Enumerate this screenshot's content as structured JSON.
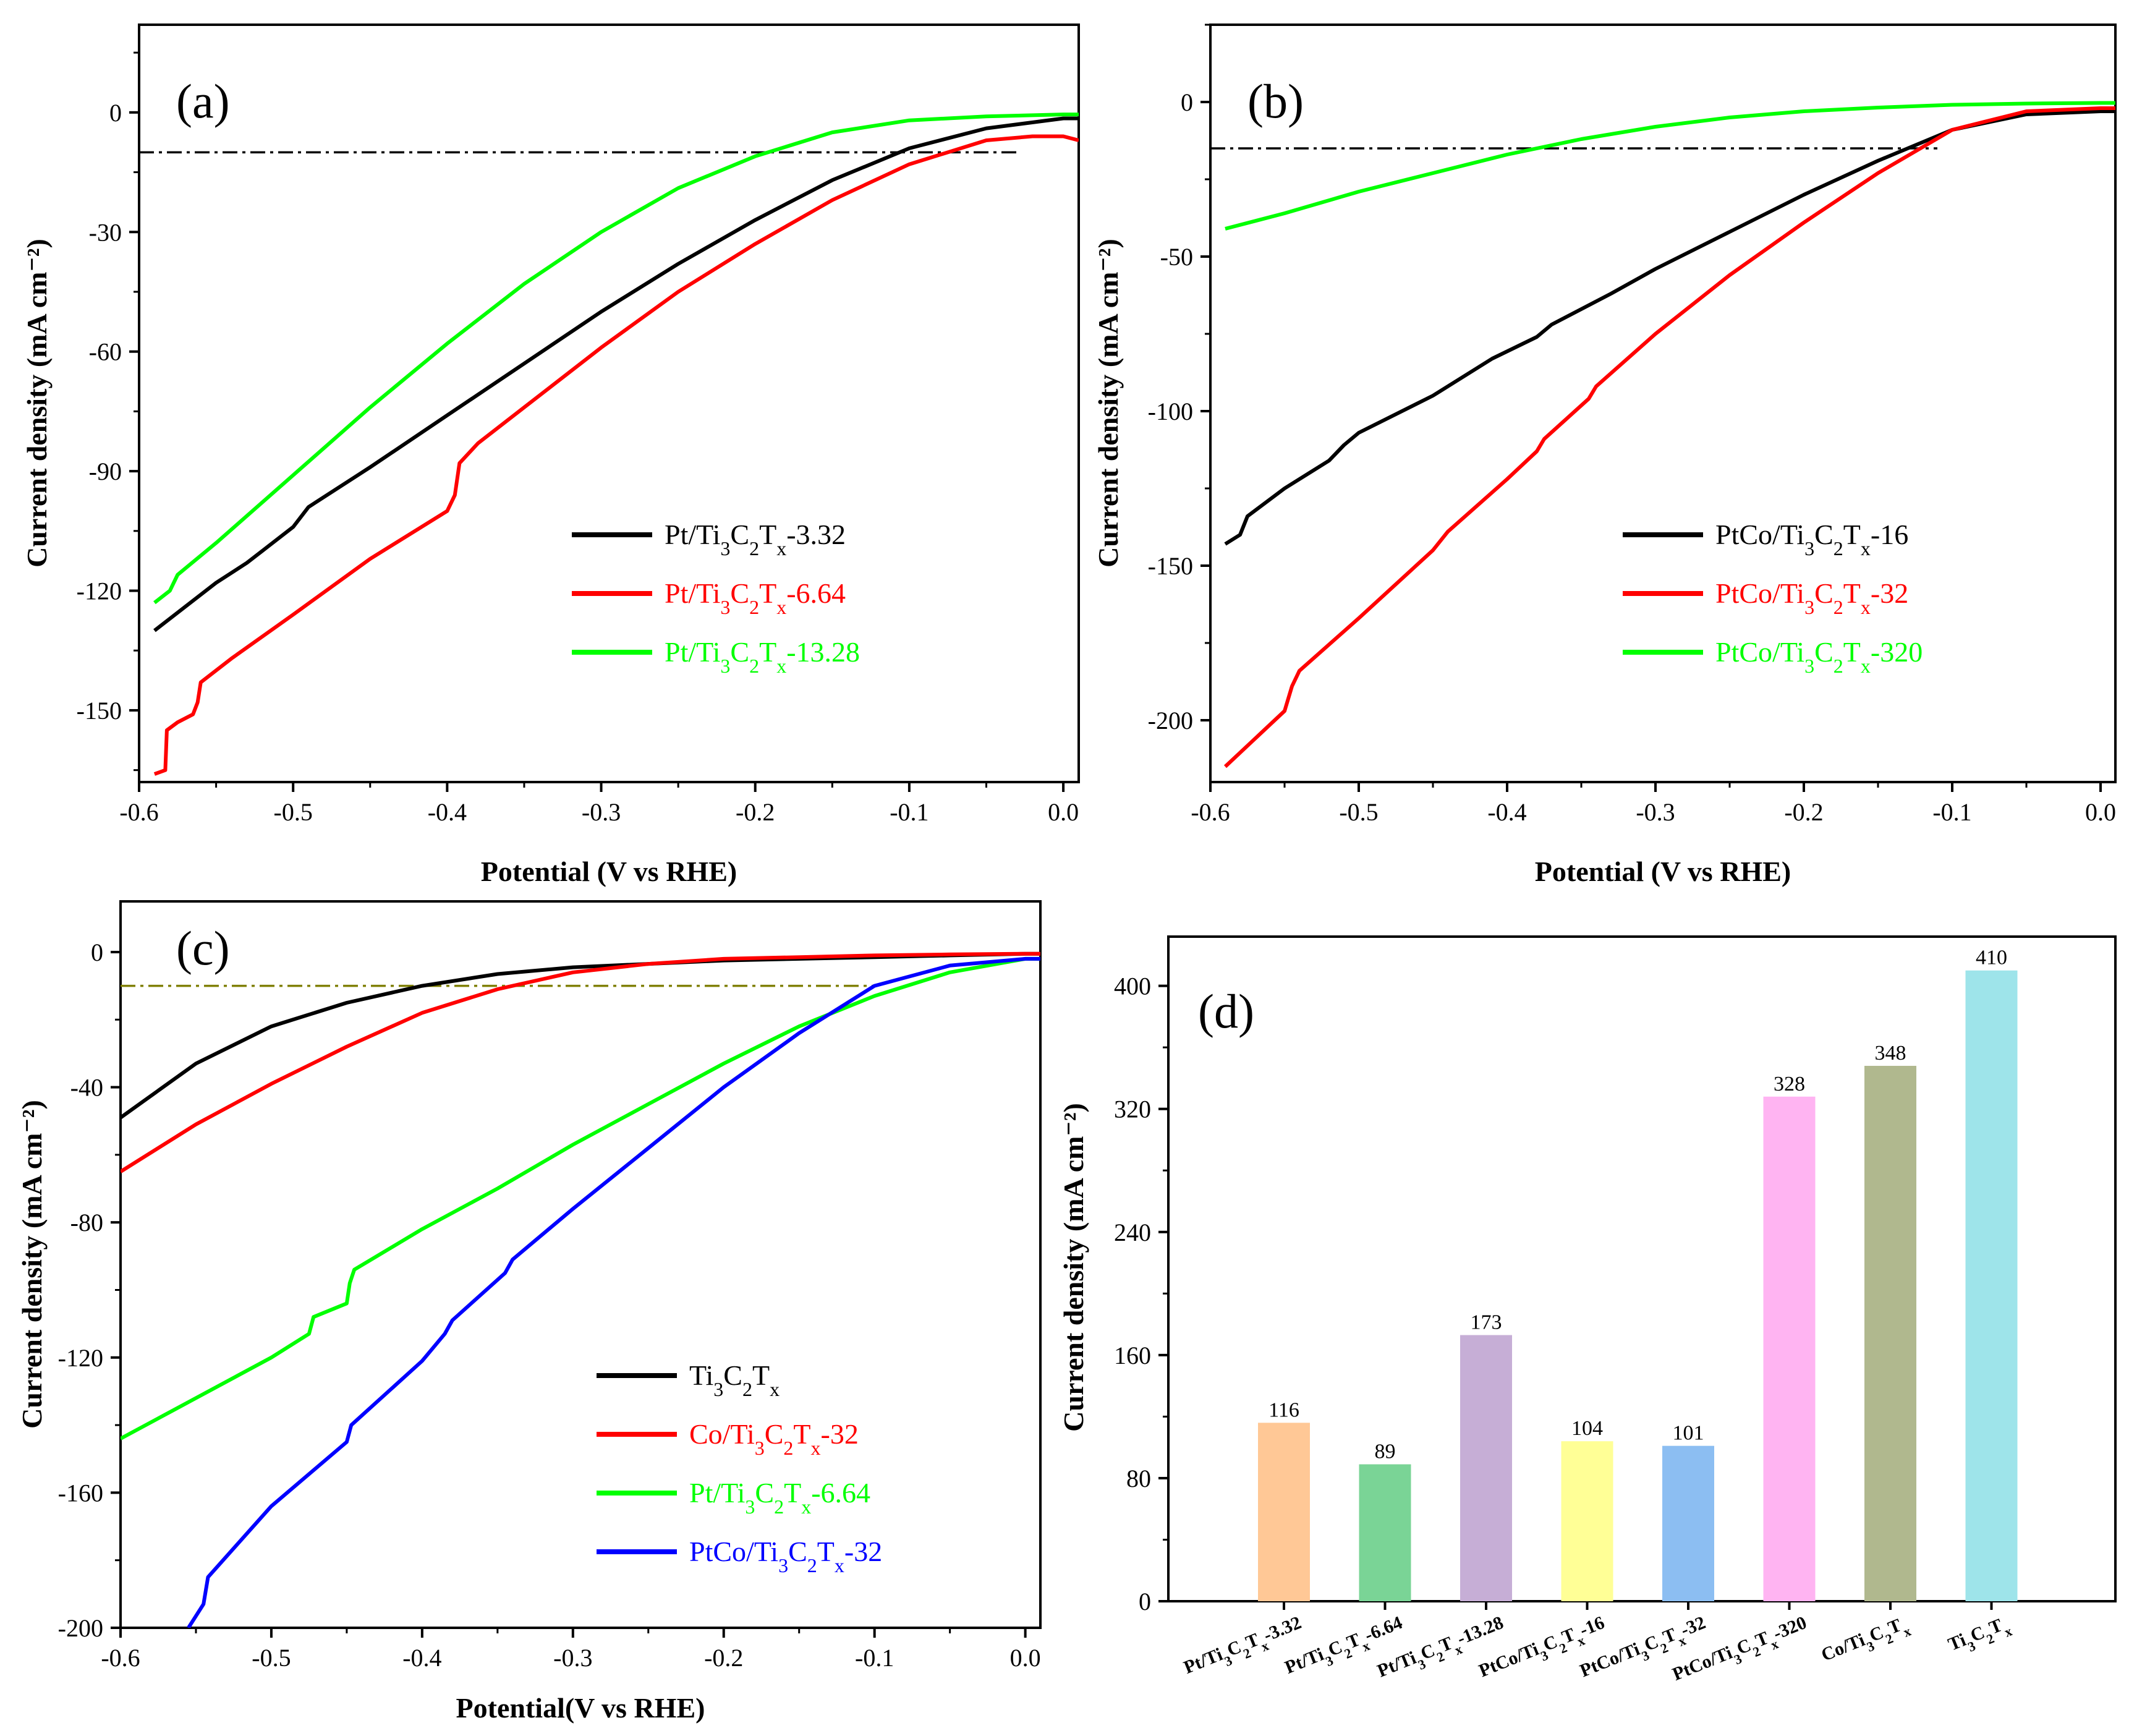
{
  "chart_data": [
    {
      "id": "a",
      "type": "line",
      "panel_label": "(a)",
      "xlabel": "Potential (V vs RHE)",
      "ylabel": "Current density (mA cm⁻²)",
      "xlim": [
        -0.6,
        0.01
      ],
      "ylim": [
        -168,
        22
      ],
      "xticks": [
        -0.6,
        -0.5,
        -0.4,
        -0.3,
        -0.2,
        -0.1,
        0.0
      ],
      "xtick_labels": [
        "-0.6",
        "-0.5",
        "-0.4",
        "-0.3",
        "-0.2",
        "-0.1",
        "0.0"
      ],
      "yticks": [
        0,
        -30,
        -60,
        -90,
        -120,
        -150
      ],
      "ytick_labels": [
        "0",
        "-30",
        "-60",
        "-90",
        "-120",
        "-150"
      ],
      "reference_line": {
        "y": -10,
        "x_from": -0.6,
        "x_to": -0.03,
        "color": "#000000"
      },
      "legend_position": "lower-right",
      "series": [
        {
          "name": "Pt/Ti3C2Tx-3.32",
          "label_main": "Pt/Ti",
          "label_parts": [
            [
              "3",
              "C"
            ],
            [
              "2",
              "T"
            ],
            [
              "x",
              "-3.32"
            ]
          ],
          "color": "#000000",
          "x": [
            -0.59,
            -0.57,
            -0.55,
            -0.53,
            -0.52,
            -0.5,
            -0.49,
            -0.45,
            -0.4,
            -0.35,
            -0.3,
            -0.25,
            -0.2,
            -0.15,
            -0.1,
            -0.05,
            0.0,
            0.01
          ],
          "y": [
            -130,
            -124,
            -118,
            -113,
            -110,
            -104,
            -99,
            -89,
            -76,
            -63,
            -50,
            -38,
            -27,
            -17,
            -9,
            -4,
            -1.5,
            -1.5
          ]
        },
        {
          "name": "Pt/Ti3C2Tx-6.64",
          "label_main": "Pt/Ti",
          "label_parts": [
            [
              "3",
              "C"
            ],
            [
              "2",
              "T"
            ],
            [
              "x",
              "-6.64"
            ]
          ],
          "color": "#ff0000",
          "x": [
            -0.59,
            -0.583,
            -0.582,
            -0.575,
            -0.565,
            -0.562,
            -0.56,
            -0.54,
            -0.5,
            -0.45,
            -0.4,
            -0.395,
            -0.392,
            -0.38,
            -0.35,
            -0.3,
            -0.25,
            -0.2,
            -0.15,
            -0.1,
            -0.05,
            -0.02,
            0.0,
            0.01
          ],
          "y": [
            -166,
            -165,
            -155,
            -153,
            -151,
            -148,
            -143,
            -137,
            -126,
            -112,
            -100,
            -96,
            -88,
            -83,
            -74,
            -59,
            -45,
            -33,
            -22,
            -13,
            -7,
            -6,
            -6,
            -7
          ]
        },
        {
          "name": "Pt/Ti3C2Tx-13.28",
          "label_main": "Pt/Ti",
          "label_parts": [
            [
              "3",
              "C"
            ],
            [
              "2",
              "T"
            ],
            [
              "x",
              "-13.28"
            ]
          ],
          "color": "#00ff00",
          "x": [
            -0.59,
            -0.58,
            -0.575,
            -0.55,
            -0.5,
            -0.45,
            -0.4,
            -0.35,
            -0.3,
            -0.25,
            -0.2,
            -0.15,
            -0.1,
            -0.05,
            0.0,
            0.01
          ],
          "y": [
            -123,
            -120,
            -116,
            -108,
            -91,
            -74,
            -58,
            -43,
            -30,
            -19,
            -11,
            -5,
            -2,
            -1,
            -0.5,
            -0.5
          ]
        }
      ]
    },
    {
      "id": "b",
      "type": "line",
      "panel_label": "(b)",
      "xlabel": "Potential (V vs RHE)",
      "ylabel": "Current density (mA cm⁻²)",
      "xlim": [
        -0.6,
        0.01
      ],
      "ylim": [
        -220,
        25
      ],
      "xticks": [
        -0.6,
        -0.5,
        -0.4,
        -0.3,
        -0.2,
        -0.1,
        0.0
      ],
      "xtick_labels": [
        "-0.6",
        "-0.5",
        "-0.4",
        "-0.3",
        "-0.2",
        "-0.1",
        "0.0"
      ],
      "yticks": [
        0,
        -50,
        -100,
        -150,
        -200
      ],
      "ytick_labels": [
        "0",
        "-50",
        "-100",
        "-150",
        "-200"
      ],
      "reference_line": {
        "y": -15,
        "x_from": -0.6,
        "x_to": -0.11,
        "color": "#000000"
      },
      "legend_position": "lower-right",
      "series": [
        {
          "name": "PtCo/Ti3C2Tx-16",
          "label_main": "PtCo/Ti",
          "label_parts": [
            [
              "3",
              "C"
            ],
            [
              "2",
              "T"
            ],
            [
              "x",
              "-16"
            ]
          ],
          "color": "#000000",
          "x": [
            -0.59,
            -0.58,
            -0.575,
            -0.55,
            -0.52,
            -0.51,
            -0.5,
            -0.45,
            -0.42,
            -0.41,
            -0.38,
            -0.37,
            -0.33,
            -0.3,
            -0.25,
            -0.2,
            -0.15,
            -0.1,
            -0.05,
            0.0,
            0.01
          ],
          "y": [
            -143,
            -140,
            -134,
            -125,
            -116,
            -111,
            -107,
            -95,
            -86,
            -83,
            -76,
            -72,
            -62,
            -54,
            -42,
            -30,
            -19,
            -9,
            -4,
            -3,
            -3
          ]
        },
        {
          "name": "PtCo/Ti3C2Tx-32",
          "label_main": "PtCo/Ti",
          "label_parts": [
            [
              "3",
              "C"
            ],
            [
              "2",
              "T"
            ],
            [
              "x",
              "-32"
            ]
          ],
          "color": "#ff0000",
          "x": [
            -0.59,
            -0.55,
            -0.545,
            -0.54,
            -0.5,
            -0.45,
            -0.44,
            -0.4,
            -0.38,
            -0.375,
            -0.345,
            -0.34,
            -0.3,
            -0.25,
            -0.2,
            -0.15,
            -0.1,
            -0.05,
            0.0,
            0.01
          ],
          "y": [
            -215,
            -197,
            -189,
            -184,
            -167,
            -145,
            -139,
            -122,
            -113,
            -109,
            -96,
            -92,
            -75,
            -56,
            -39,
            -23,
            -9,
            -3,
            -2,
            -2
          ]
        },
        {
          "name": "PtCo/Ti3C2Tx-320",
          "label_main": "PtCo/Ti",
          "label_parts": [
            [
              "3",
              "C"
            ],
            [
              "2",
              "T"
            ],
            [
              "x",
              "-320"
            ]
          ],
          "color": "#00ff00",
          "x": [
            -0.59,
            -0.55,
            -0.5,
            -0.45,
            -0.4,
            -0.35,
            -0.3,
            -0.25,
            -0.2,
            -0.15,
            -0.1,
            -0.05,
            0.0,
            0.01
          ],
          "y": [
            -41,
            -36,
            -29,
            -23,
            -17,
            -12,
            -8,
            -5,
            -3,
            -1.8,
            -0.9,
            -0.5,
            -0.3,
            -0.3
          ]
        }
      ]
    },
    {
      "id": "c",
      "type": "line",
      "panel_label": "(c)",
      "xlabel": "Potential(V vs RHE)",
      "ylabel": "Current density (mA cm⁻²)",
      "xlim": [
        -0.6,
        0.01
      ],
      "ylim": [
        -200,
        15
      ],
      "xticks": [
        -0.6,
        -0.5,
        -0.4,
        -0.3,
        -0.2,
        -0.1,
        0.0
      ],
      "xtick_labels": [
        "-0.6",
        "-0.5",
        "-0.4",
        "-0.3",
        "-0.2",
        "-0.1",
        "0.0"
      ],
      "yticks": [
        0,
        -40,
        -80,
        -120,
        -160,
        -200
      ],
      "ytick_labels": [
        "0",
        "-40",
        "-80",
        "-120",
        "-160",
        "-200"
      ],
      "reference_line": {
        "y": -10,
        "x_from": -0.6,
        "x_to": -0.1,
        "color": "#808000"
      },
      "legend_position": "lower-right",
      "series": [
        {
          "name": "Ti3C2Tx",
          "label_main": "Ti",
          "label_parts": [
            [
              "3",
              "C"
            ],
            [
              "2",
              "T"
            ],
            [
              "x",
              ""
            ]
          ],
          "color": "#000000",
          "x": [
            -0.6,
            -0.55,
            -0.5,
            -0.45,
            -0.4,
            -0.35,
            -0.3,
            -0.25,
            -0.2,
            -0.15,
            -0.1,
            -0.05,
            0.0,
            0.01
          ],
          "y": [
            -49,
            -33,
            -22,
            -15,
            -10,
            -6.5,
            -4.5,
            -3.5,
            -2.5,
            -2,
            -1.5,
            -1,
            -0.5,
            -0.5
          ]
        },
        {
          "name": "Co/Ti3C2Tx-32",
          "label_main": "Co/Ti",
          "label_parts": [
            [
              "3",
              "C"
            ],
            [
              "2",
              "T"
            ],
            [
              "x",
              "-32"
            ]
          ],
          "color": "#ff0000",
          "x": [
            -0.6,
            -0.55,
            -0.5,
            -0.45,
            -0.4,
            -0.35,
            -0.3,
            -0.25,
            -0.2,
            -0.15,
            -0.1,
            -0.05,
            0.0,
            0.01
          ],
          "y": [
            -65,
            -51,
            -39,
            -28,
            -18,
            -11,
            -6,
            -3.5,
            -2,
            -1.5,
            -1,
            -0.7,
            -0.5,
            -0.5
          ]
        },
        {
          "name": "Pt/Ti3C2Tx-6.64",
          "label_main": "Pt/Ti",
          "label_parts": [
            [
              "3",
              "C"
            ],
            [
              "2",
              "T"
            ],
            [
              "x",
              "-6.64"
            ]
          ],
          "color": "#00ff00",
          "x": [
            -0.6,
            -0.55,
            -0.5,
            -0.475,
            -0.472,
            -0.45,
            -0.448,
            -0.445,
            -0.4,
            -0.35,
            -0.3,
            -0.25,
            -0.2,
            -0.15,
            -0.1,
            -0.05,
            0.0,
            0.01
          ],
          "y": [
            -144,
            -132,
            -120,
            -113,
            -108,
            -104,
            -98,
            -94,
            -82,
            -70,
            -57,
            -45,
            -33,
            -22,
            -13,
            -6,
            -2,
            -2
          ]
        },
        {
          "name": "PtCo/Ti3C2Tx-32",
          "label_main": "PtCo/Ti",
          "label_parts": [
            [
              "3",
              "C"
            ],
            [
              "2",
              "T"
            ],
            [
              "x",
              "-32"
            ]
          ],
          "color": "#0000ff",
          "x": [
            -0.555,
            -0.545,
            -0.542,
            -0.5,
            -0.45,
            -0.447,
            -0.4,
            -0.385,
            -0.38,
            -0.345,
            -0.34,
            -0.3,
            -0.25,
            -0.2,
            -0.15,
            -0.1,
            -0.05,
            0.0,
            0.01
          ],
          "y": [
            -200,
            -193,
            -185,
            -164,
            -145,
            -140,
            -121,
            -113,
            -109,
            -95,
            -91,
            -76,
            -58,
            -40,
            -24,
            -10,
            -4,
            -2,
            -2
          ]
        }
      ]
    },
    {
      "id": "d",
      "type": "bar",
      "panel_label": "(d)",
      "ylabel": "Current density (mA cm⁻²)",
      "ylim": [
        0,
        432
      ],
      "yticks": [
        0,
        80,
        160,
        240,
        320,
        400
      ],
      "ytick_labels": [
        "0",
        "80",
        "160",
        "240",
        "320",
        "400"
      ],
      "categories": [
        "Pt/Ti3C2Tx-3.32",
        "Pt/Ti3C2Tx-6.64",
        "Pt/Ti3C2Tx-13.28",
        "PtCo/Ti3C2Tx-16",
        "PtCo/Ti3C2Tx-32",
        "PtCo/Ti3C2Tx-320",
        "Co/Ti3C2Tx",
        "Ti3C2Tx"
      ],
      "category_labels": [
        {
          "main": "Pt/Ti",
          "parts": [
            [
              "3",
              "C"
            ],
            [
              "2",
              "T"
            ],
            [
              "x",
              "-3.32"
            ]
          ]
        },
        {
          "main": "Pt/Ti",
          "parts": [
            [
              "3",
              "C"
            ],
            [
              "2",
              "T"
            ],
            [
              "x",
              "-6.64"
            ]
          ]
        },
        {
          "main": "Pt/Ti",
          "parts": [
            [
              "3",
              "C"
            ],
            [
              "2",
              "T"
            ],
            [
              "x",
              "-13.28"
            ]
          ]
        },
        {
          "main": "PtCo/Ti",
          "parts": [
            [
              "3",
              "C"
            ],
            [
              "2",
              "T"
            ],
            [
              "x",
              "-16"
            ]
          ]
        },
        {
          "main": "PtCo/Ti",
          "parts": [
            [
              "3",
              "C"
            ],
            [
              "2",
              "T"
            ],
            [
              "x",
              "-32"
            ]
          ]
        },
        {
          "main": "PtCo/Ti",
          "parts": [
            [
              "3",
              "C"
            ],
            [
              "2",
              "T"
            ],
            [
              "x",
              "-320"
            ]
          ]
        },
        {
          "main": "Co/Ti",
          "parts": [
            [
              "3",
              "C"
            ],
            [
              "2",
              "T"
            ],
            [
              "x",
              ""
            ]
          ]
        },
        {
          "main": "Ti",
          "parts": [
            [
              "3",
              "C"
            ],
            [
              "2",
              "T"
            ],
            [
              "x",
              ""
            ]
          ]
        }
      ],
      "values": [
        116,
        89,
        173,
        104,
        101,
        328,
        348,
        410
      ],
      "value_labels": [
        "116",
        "89",
        "173",
        "104",
        "101",
        "328",
        "348",
        "410"
      ],
      "colors": [
        "#ffc896",
        "#7ad496",
        "#c6aed6",
        "#ffff96",
        "#8cbef2",
        "#ffb4f2",
        "#b0b88e",
        "#9ee4ea"
      ]
    }
  ]
}
